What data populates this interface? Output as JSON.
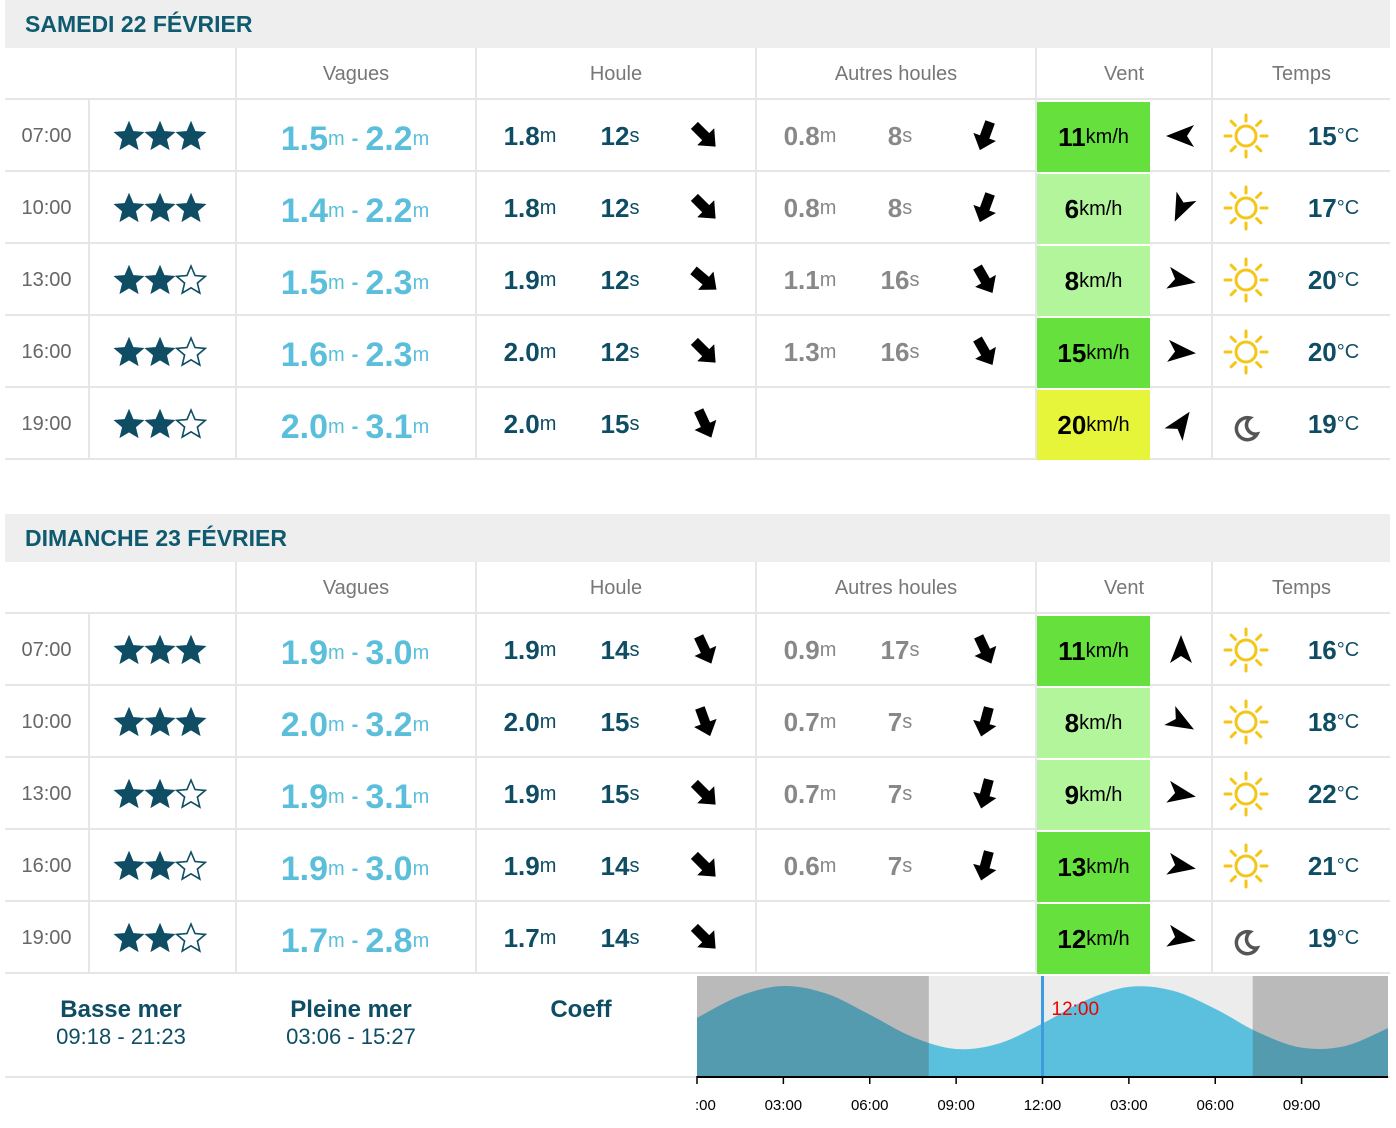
{
  "days": [
    {
      "title": "SAMEDI 22 FÉVRIER",
      "headers": [
        "Vagues",
        "Houle",
        "Autres houles",
        "Vent",
        "Temps"
      ],
      "rows": [
        {
          "time": "07:00",
          "rating": 3,
          "wave": [
            "1.5",
            "2.2"
          ],
          "swell": {
            "height": "1.8",
            "period": "12",
            "dir": 135
          },
          "other": {
            "height": "0.8",
            "period": "8",
            "dir": 200
          },
          "wind": {
            "speed": "11",
            "dir": 270,
            "color": "#66e03c"
          },
          "weather": "sun",
          "temp": "15"
        },
        {
          "time": "10:00",
          "rating": 3,
          "wave": [
            "1.4",
            "2.2"
          ],
          "swell": {
            "height": "1.8",
            "period": "12",
            "dir": 135
          },
          "other": {
            "height": "0.8",
            "period": "8",
            "dir": 200
          },
          "wind": {
            "speed": "6",
            "dir": 205,
            "color": "#b3f59b"
          },
          "weather": "sun",
          "temp": "17"
        },
        {
          "time": "13:00",
          "rating": 2,
          "wave": [
            "1.5",
            "2.3"
          ],
          "swell": {
            "height": "1.9",
            "period": "12",
            "dir": 130
          },
          "other": {
            "height": "1.1",
            "period": "16",
            "dir": 150
          },
          "wind": {
            "speed": "8",
            "dir": 100,
            "color": "#b3f59b"
          },
          "weather": "sun",
          "temp": "20"
        },
        {
          "time": "16:00",
          "rating": 2,
          "wave": [
            "1.6",
            "2.3"
          ],
          "swell": {
            "height": "2.0",
            "period": "12",
            "dir": 135
          },
          "other": {
            "height": "1.3",
            "period": "16",
            "dir": 150
          },
          "wind": {
            "speed": "15",
            "dir": 95,
            "color": "#66e03c"
          },
          "weather": "sun",
          "temp": "20"
        },
        {
          "time": "19:00",
          "rating": 2,
          "wave": [
            "2.0",
            "3.1"
          ],
          "swell": {
            "height": "2.0",
            "period": "15",
            "dir": 155
          },
          "other": null,
          "wind": {
            "speed": "20",
            "dir": 35,
            "color": "#e6f53a"
          },
          "weather": "moon",
          "temp": "19"
        }
      ]
    },
    {
      "title": "DIMANCHE 23 FÉVRIER",
      "headers": [
        "Vagues",
        "Houle",
        "Autres houles",
        "Vent",
        "Temps"
      ],
      "rows": [
        {
          "time": "07:00",
          "rating": 3,
          "wave": [
            "1.9",
            "3.0"
          ],
          "swell": {
            "height": "1.9",
            "period": "14",
            "dir": 155
          },
          "other": {
            "height": "0.9",
            "period": "17",
            "dir": 155
          },
          "wind": {
            "speed": "11",
            "dir": 0,
            "color": "#66e03c"
          },
          "weather": "sun",
          "temp": "16"
        },
        {
          "time": "10:00",
          "rating": 3,
          "wave": [
            "2.0",
            "3.2"
          ],
          "swell": {
            "height": "2.0",
            "period": "15",
            "dir": 160
          },
          "other": {
            "height": "0.7",
            "period": "7",
            "dir": 195
          },
          "wind": {
            "speed": "8",
            "dir": 120,
            "color": "#b3f59b"
          },
          "weather": "sun",
          "temp": "18"
        },
        {
          "time": "13:00",
          "rating": 2,
          "wave": [
            "1.9",
            "3.1"
          ],
          "swell": {
            "height": "1.9",
            "period": "15",
            "dir": 135
          },
          "other": {
            "height": "0.7",
            "period": "7",
            "dir": 195
          },
          "wind": {
            "speed": "9",
            "dir": 100,
            "color": "#b3f59b"
          },
          "weather": "sun",
          "temp": "22"
        },
        {
          "time": "16:00",
          "rating": 2,
          "wave": [
            "1.9",
            "3.0"
          ],
          "swell": {
            "height": "1.9",
            "period": "14",
            "dir": 135
          },
          "other": {
            "height": "0.6",
            "period": "7",
            "dir": 195
          },
          "wind": {
            "speed": "13",
            "dir": 100,
            "color": "#66e03c"
          },
          "weather": "sun",
          "temp": "21"
        },
        {
          "time": "19:00",
          "rating": 2,
          "wave": [
            "1.7",
            "2.8"
          ],
          "swell": {
            "height": "1.7",
            "period": "14",
            "dir": 135
          },
          "other": null,
          "wind": {
            "speed": "12",
            "dir": 100,
            "color": "#66e03c"
          },
          "weather": "moon",
          "temp": "19"
        }
      ]
    }
  ],
  "units": {
    "height": "m",
    "period": "s",
    "wind": "km/h",
    "temp": "°C",
    "separator": "-"
  },
  "tide": {
    "low_label": "Basse mer",
    "low_times": "09:18 - 21:23",
    "high_label": "Pleine mer",
    "high_times": "03:06 - 15:27",
    "coeff_label": "Coeff",
    "chart": {
      "type": "area",
      "x": [
        0,
        1.5,
        3,
        4.5,
        6,
        7.5,
        9,
        10.5,
        12,
        13.5,
        15,
        16.5,
        18,
        19.5,
        21,
        22.5,
        24
      ],
      "values": [
        2.49,
        3.81,
        4.4,
        3.94,
        2.68,
        1.33,
        0.62,
        0.96,
        2.15,
        3.54,
        4.35,
        4.13,
        3.03,
        1.61,
        0.7,
        0.79,
        1.87
      ],
      "color": "#5bc0de",
      "xlim": [
        0,
        24
      ],
      "ylim": [
        -1,
        5
      ],
      "xticks": [
        {
          "value": 0,
          "label": ":00"
        },
        {
          "value": 3,
          "label": "03:00"
        },
        {
          "value": 6,
          "label": "06:00"
        },
        {
          "value": 9,
          "label": "09:00"
        },
        {
          "value": 12,
          "label": "12:00"
        },
        {
          "value": 15,
          "label": "03:00"
        },
        {
          "value": 18,
          "label": "06:00"
        },
        {
          "value": 21,
          "label": "09:00"
        }
      ],
      "marker": {
        "value": 12,
        "label": "12:00"
      },
      "night": [
        [
          0,
          8.05
        ],
        [
          19.3,
          24
        ]
      ]
    }
  }
}
